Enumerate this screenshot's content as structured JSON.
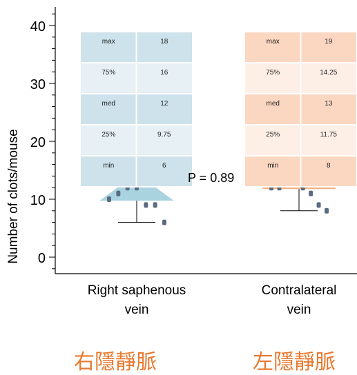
{
  "chart_data": {
    "type": "box",
    "title": "",
    "xlabel": "",
    "ylabel": "Number of clots/mouse",
    "ylim": [
      -3,
      45
    ],
    "yticks": [
      0,
      10,
      20,
      30,
      40
    ],
    "categories": [
      "Right saphenous vein",
      "Contralateral vein"
    ],
    "category_lines": [
      [
        "Right saphenous",
        "vein"
      ],
      [
        "Contralateral",
        "vein"
      ]
    ],
    "chinese_labels": [
      "右隱靜脈",
      "左隱靜脈"
    ],
    "pvalue_label": "P = 0.89",
    "stat_labels": [
      "max",
      "75%",
      "med",
      "25%",
      "min"
    ],
    "tables": [
      {
        "values": [
          "18",
          "16",
          "12",
          "9.75",
          "6"
        ]
      },
      {
        "values": [
          "19",
          "14.25",
          "13",
          "11.75",
          "8"
        ]
      }
    ],
    "series": [
      {
        "box": {
          "max": 18,
          "q3": 16,
          "median": 12,
          "q1": 9.75,
          "min": 6
        },
        "points": [
          10,
          11,
          12,
          12,
          9,
          9,
          6
        ],
        "fill": "#a8d3df",
        "table_dark": "#cde2ea",
        "table_light": "#e7f0f4"
      },
      {
        "box": {
          "max": 19,
          "q3": 14.25,
          "median": 13,
          "q1": 11.75,
          "min": 8
        },
        "points": [
          12,
          12,
          13,
          13,
          12,
          11,
          9,
          8
        ],
        "fill": "#f5b07f",
        "table_dark": "#fbd7c1",
        "table_light": "#fdeee6"
      }
    ],
    "colors": {
      "point": "#5a6a82",
      "axis": "#000000",
      "chinese": "#e8792f"
    },
    "grid": false,
    "legend": "none"
  }
}
